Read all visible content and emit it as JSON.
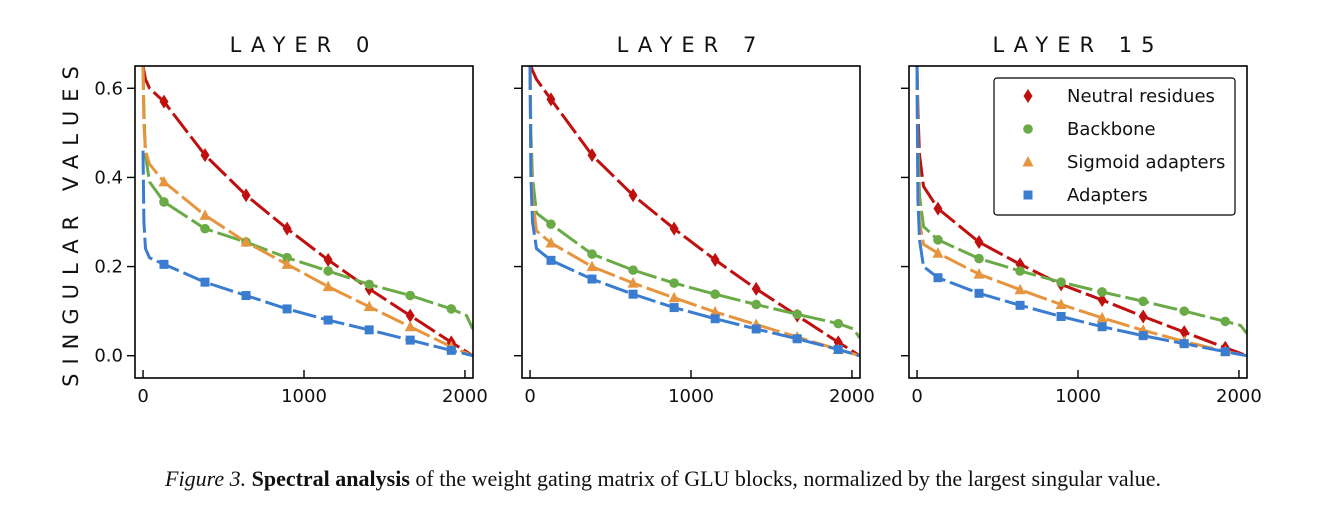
{
  "chart_data": [
    {
      "type": "line",
      "title": "LAYER 0",
      "ylabel": "SINGULAR VALUES",
      "xticks": [
        "0",
        "1000",
        "2000"
      ],
      "yticks": [
        "0.0",
        "0.2",
        "0.4",
        "0.6"
      ],
      "xlim": [
        -50,
        2050
      ],
      "ylim": [
        -0.05,
        0.65
      ],
      "series": [
        {
          "name": "Neutral residues",
          "color": "#c00f0f",
          "marker": "diamond",
          "x": [
            0,
            5,
            15,
            40,
            130,
            385,
            640,
            895,
            1150,
            1405,
            1660,
            1915,
            2048
          ],
          "y": [
            0.65,
            0.64,
            0.62,
            0.6,
            0.57,
            0.45,
            0.36,
            0.285,
            0.215,
            0.15,
            0.09,
            0.03,
            0.0
          ]
        },
        {
          "name": "Backbone",
          "color": "#6aab47",
          "marker": "circle",
          "x": [
            0,
            5,
            15,
            40,
            130,
            385,
            640,
            895,
            1150,
            1405,
            1660,
            1915,
            2010,
            2048
          ],
          "y": [
            0.65,
            0.55,
            0.45,
            0.39,
            0.345,
            0.285,
            0.255,
            0.22,
            0.19,
            0.16,
            0.135,
            0.105,
            0.09,
            0.06
          ]
        },
        {
          "name": "Sigmoid adapters",
          "color": "#e6953e",
          "marker": "triangle",
          "x": [
            0,
            5,
            15,
            40,
            130,
            385,
            640,
            895,
            1150,
            1405,
            1660,
            1915,
            2048
          ],
          "y": [
            0.65,
            0.52,
            0.46,
            0.43,
            0.39,
            0.315,
            0.255,
            0.205,
            0.155,
            0.11,
            0.065,
            0.02,
            0.0
          ]
        },
        {
          "name": "Adapters",
          "color": "#3a7dd0",
          "marker": "square",
          "x": [
            0,
            5,
            15,
            40,
            130,
            385,
            640,
            895,
            1150,
            1405,
            1660,
            1915,
            2048
          ],
          "y": [
            0.46,
            0.3,
            0.24,
            0.22,
            0.205,
            0.165,
            0.135,
            0.105,
            0.08,
            0.058,
            0.035,
            0.012,
            0.0
          ]
        }
      ]
    },
    {
      "type": "line",
      "title": "LAYER 7",
      "xticks": [
        "0",
        "1000",
        "2000"
      ],
      "xlim": [
        -50,
        2050
      ],
      "ylim": [
        -0.05,
        0.65
      ],
      "series": [
        {
          "name": "Neutral residues",
          "color": "#c00f0f",
          "marker": "diamond",
          "x": [
            0,
            5,
            15,
            40,
            130,
            385,
            640,
            895,
            1150,
            1405,
            1660,
            1915,
            2048
          ],
          "y": [
            0.65,
            0.65,
            0.64,
            0.62,
            0.575,
            0.45,
            0.36,
            0.285,
            0.215,
            0.15,
            0.09,
            0.03,
            0.0
          ]
        },
        {
          "name": "Backbone",
          "color": "#6aab47",
          "marker": "circle",
          "x": [
            0,
            5,
            15,
            40,
            130,
            385,
            640,
            895,
            1150,
            1405,
            1660,
            1915,
            2010,
            2048
          ],
          "y": [
            0.65,
            0.5,
            0.4,
            0.32,
            0.295,
            0.228,
            0.192,
            0.163,
            0.138,
            0.115,
            0.093,
            0.072,
            0.06,
            0.04
          ]
        },
        {
          "name": "Sigmoid adapters",
          "color": "#e6953e",
          "marker": "triangle",
          "x": [
            0,
            5,
            15,
            40,
            130,
            385,
            640,
            895,
            1150,
            1405,
            1660,
            1915,
            2048
          ],
          "y": [
            0.65,
            0.45,
            0.35,
            0.28,
            0.253,
            0.2,
            0.163,
            0.13,
            0.098,
            0.07,
            0.042,
            0.014,
            0.0
          ]
        },
        {
          "name": "Adapters",
          "color": "#3a7dd0",
          "marker": "square",
          "x": [
            0,
            5,
            15,
            40,
            130,
            385,
            640,
            895,
            1150,
            1405,
            1660,
            1915,
            2048
          ],
          "y": [
            0.65,
            0.4,
            0.3,
            0.24,
            0.214,
            0.172,
            0.138,
            0.108,
            0.083,
            0.06,
            0.038,
            0.014,
            0.0
          ]
        }
      ]
    },
    {
      "type": "line",
      "title": "LAYER 15",
      "xticks": [
        "0",
        "1000",
        "2000"
      ],
      "xlim": [
        -50,
        2050
      ],
      "ylim": [
        -0.05,
        0.65
      ],
      "legend": "top-right",
      "series": [
        {
          "name": "Neutral residues",
          "color": "#c00f0f",
          "marker": "diamond",
          "x": [
            0,
            5,
            15,
            40,
            130,
            385,
            640,
            895,
            1150,
            1405,
            1660,
            1915,
            2048
          ],
          "y": [
            0.65,
            0.55,
            0.45,
            0.38,
            0.33,
            0.255,
            0.205,
            0.16,
            0.125,
            0.088,
            0.053,
            0.018,
            0.0
          ]
        },
        {
          "name": "Backbone",
          "color": "#6aab47",
          "marker": "circle",
          "x": [
            0,
            5,
            15,
            40,
            130,
            385,
            640,
            895,
            1150,
            1405,
            1660,
            1915,
            2010,
            2048
          ],
          "y": [
            0.65,
            0.48,
            0.36,
            0.29,
            0.26,
            0.218,
            0.19,
            0.165,
            0.143,
            0.122,
            0.1,
            0.077,
            0.068,
            0.05
          ]
        },
        {
          "name": "Sigmoid adapters",
          "color": "#e6953e",
          "marker": "triangle",
          "x": [
            0,
            5,
            15,
            40,
            130,
            385,
            640,
            895,
            1150,
            1405,
            1660,
            1915,
            2048
          ],
          "y": [
            0.65,
            0.4,
            0.3,
            0.25,
            0.23,
            0.183,
            0.148,
            0.115,
            0.085,
            0.057,
            0.032,
            0.01,
            0.0
          ]
        },
        {
          "name": "Adapters",
          "color": "#3a7dd0",
          "marker": "square",
          "x": [
            0,
            5,
            15,
            40,
            130,
            385,
            640,
            895,
            1150,
            1405,
            1660,
            1915,
            2048
          ],
          "y": [
            0.65,
            0.35,
            0.26,
            0.2,
            0.175,
            0.14,
            0.113,
            0.088,
            0.065,
            0.045,
            0.027,
            0.009,
            0.0
          ]
        }
      ]
    }
  ],
  "legend": {
    "items": [
      {
        "label": "Neutral residues",
        "color": "#c00f0f",
        "marker": "diamond"
      },
      {
        "label": "Backbone",
        "color": "#6aab47",
        "marker": "circle"
      },
      {
        "label": "Sigmoid adapters",
        "color": "#e6953e",
        "marker": "triangle"
      },
      {
        "label": "Adapters",
        "color": "#3a7dd0",
        "marker": "square"
      }
    ]
  },
  "caption": {
    "label": "Figure 3.",
    "bold": "Spectral analysis",
    "rest": "of the weight gating matrix of GLU blocks, normalized by the largest singular value."
  }
}
